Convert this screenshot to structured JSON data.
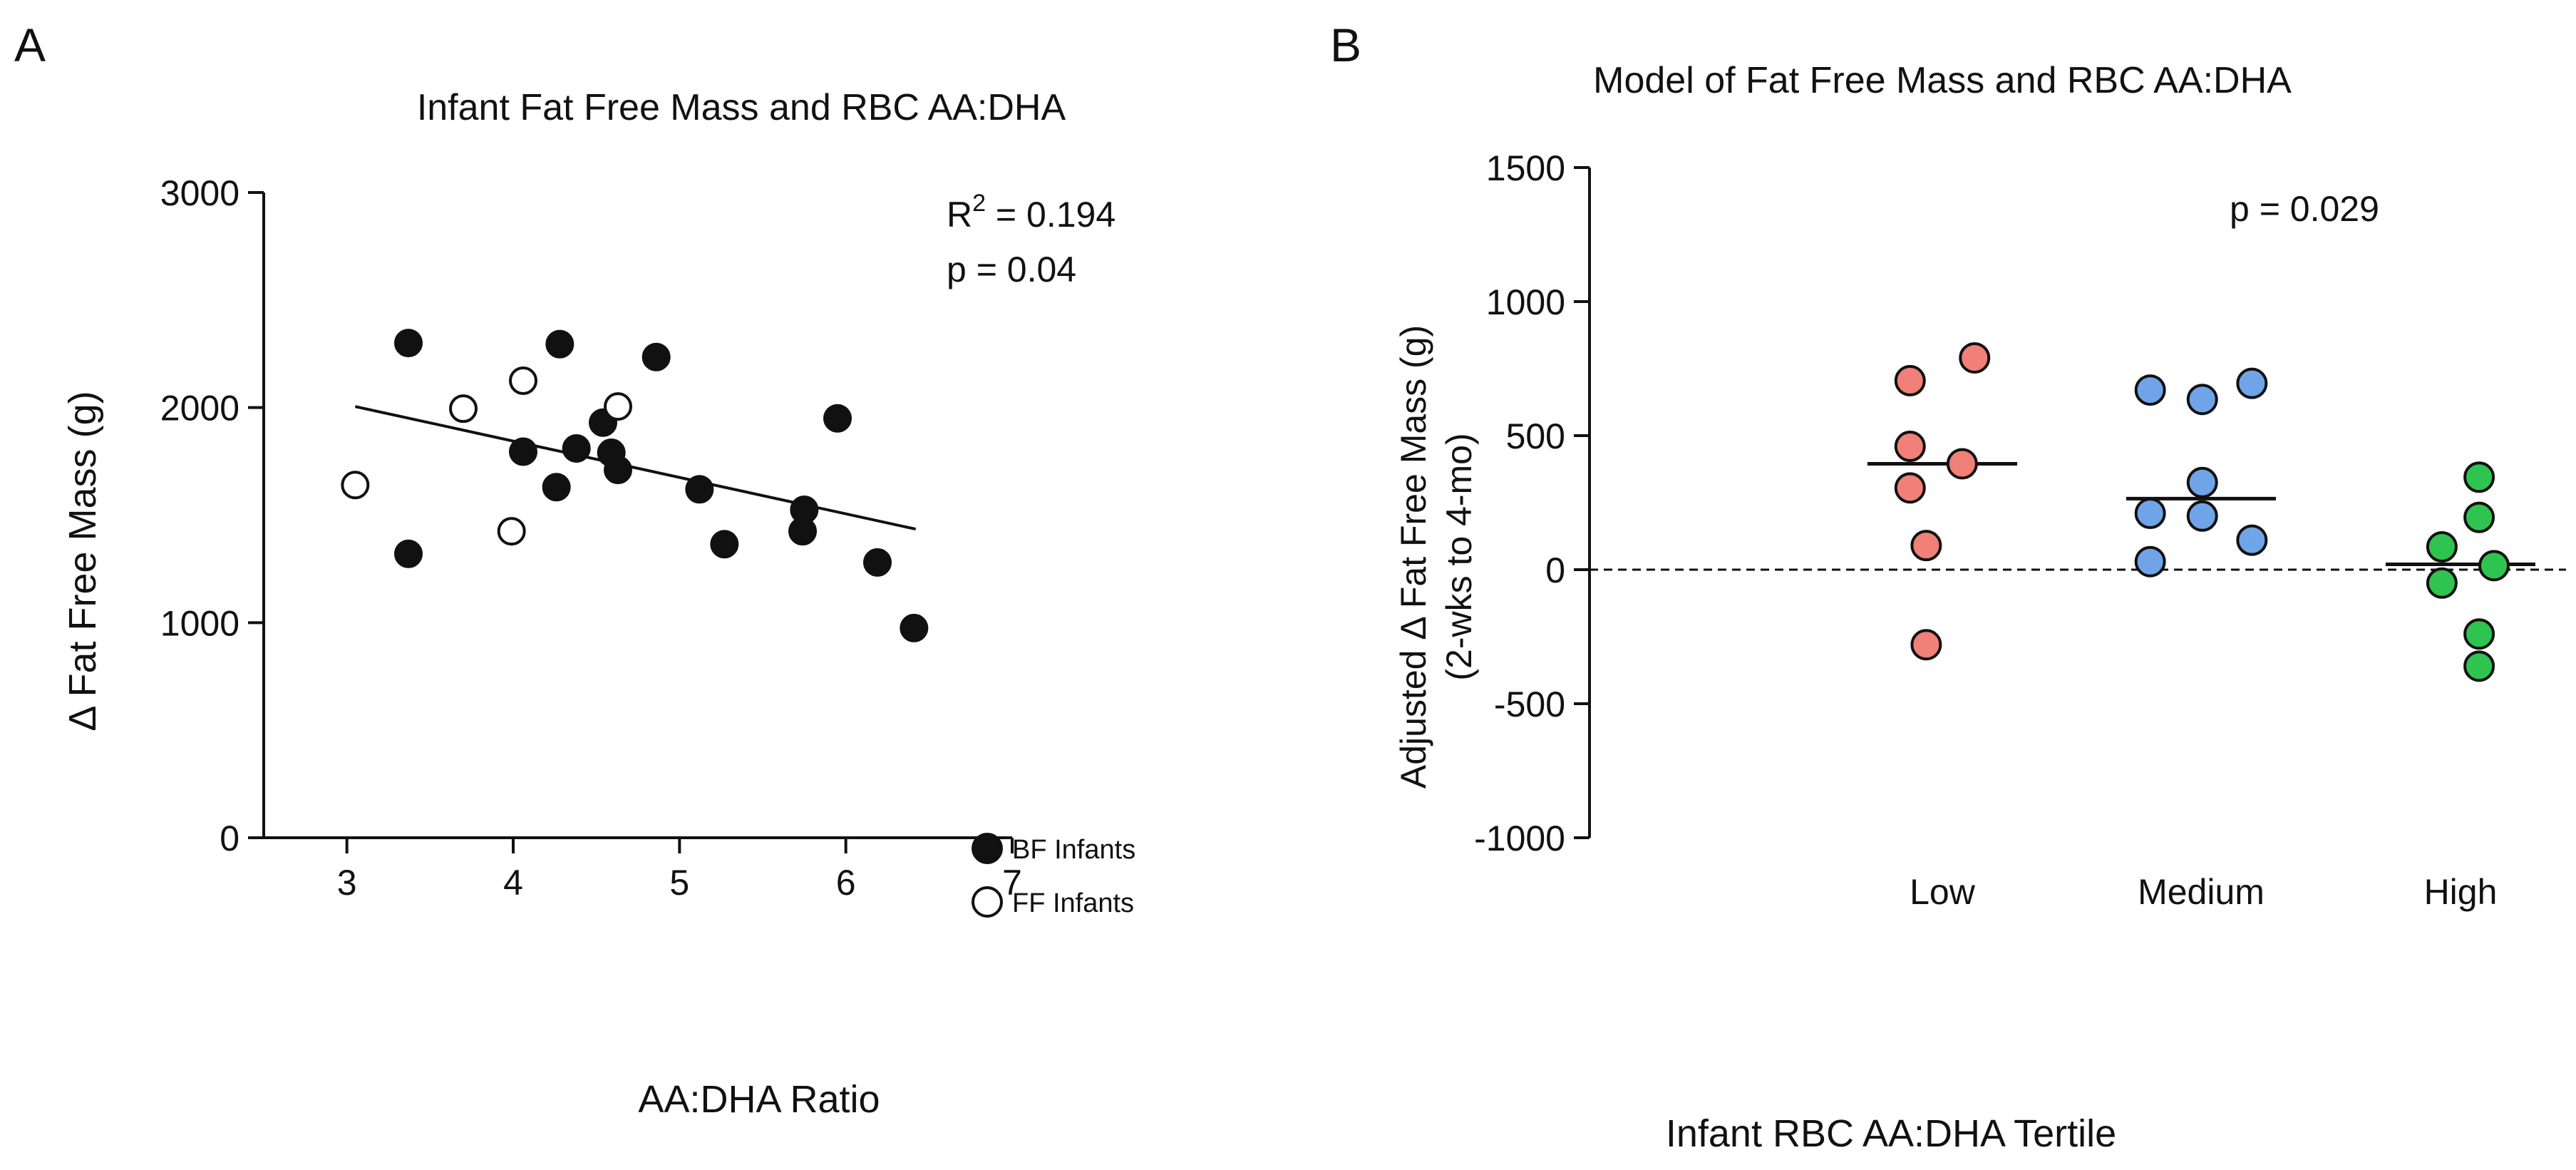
{
  "chart_data": [
    {
      "panel": "A",
      "type": "scatter",
      "title": "Infant Fat Free Mass and RBC AA:DHA",
      "xlabel": "AA:DHA Ratio",
      "ylabel": "Δ Fat Free Mass (g)",
      "xlim": [
        2.5,
        7
      ],
      "ylim": [
        0,
        3000
      ],
      "xticks": [
        3,
        4,
        5,
        6,
        7
      ],
      "yticks": [
        0,
        1000,
        2000,
        3000
      ],
      "annotations": {
        "r2_prefix": "R",
        "r2_sup": "2",
        "r2_value": " = 0.194",
        "p": "p = 0.04"
      },
      "legend_position": "bottom-right",
      "series": [
        {
          "name": "BF Infants",
          "fill": "#111111",
          "points": [
            {
              "x": 3.37,
              "y": 2300
            },
            {
              "x": 3.37,
              "y": 1320
            },
            {
              "x": 4.06,
              "y": 1795
            },
            {
              "x": 4.26,
              "y": 1630
            },
            {
              "x": 4.28,
              "y": 2295
            },
            {
              "x": 4.38,
              "y": 1810
            },
            {
              "x": 4.54,
              "y": 1930
            },
            {
              "x": 4.59,
              "y": 1790
            },
            {
              "x": 4.63,
              "y": 1710
            },
            {
              "x": 4.86,
              "y": 2235
            },
            {
              "x": 5.12,
              "y": 1620
            },
            {
              "x": 5.27,
              "y": 1365
            },
            {
              "x": 5.75,
              "y": 1525
            },
            {
              "x": 5.74,
              "y": 1425
            },
            {
              "x": 5.95,
              "y": 1950
            },
            {
              "x": 6.19,
              "y": 1280
            },
            {
              "x": 6.41,
              "y": 975
            }
          ]
        },
        {
          "name": "FF Infants",
          "fill": "#ffffff",
          "points": [
            {
              "x": 3.05,
              "y": 1640
            },
            {
              "x": 3.7,
              "y": 1995
            },
            {
              "x": 3.99,
              "y": 1425
            },
            {
              "x": 4.06,
              "y": 2125
            },
            {
              "x": 4.63,
              "y": 2005
            }
          ]
        }
      ],
      "regression_line": {
        "x": [
          3.05,
          6.42
        ],
        "y": [
          2005,
          1435
        ]
      }
    },
    {
      "panel": "B",
      "type": "scatter",
      "title": "Model of Fat Free Mass and RBC AA:DHA",
      "xlabel": "Infant  RBC AA:DHA Tertile",
      "ylabel": "Adjusted Δ Fat Free Mass (g)",
      "ylabel2": "(2-wks to 4-mo)",
      "ylim": [
        -1000,
        1500
      ],
      "yticks": [
        -1000,
        -500,
        0,
        500,
        1000,
        1500
      ],
      "annotations": {
        "p": "p = 0.029"
      },
      "reference_line_y": 0,
      "categories": [
        "Low",
        "Medium",
        "High"
      ],
      "groups": [
        {
          "name": "Low",
          "color": "#f08078",
          "median": 395,
          "points": [
            {
              "offset": -0.26,
              "y": 705
            },
            {
              "offset": 0.26,
              "y": 790
            },
            {
              "offset": -0.26,
              "y": 460
            },
            {
              "offset": 0.16,
              "y": 395
            },
            {
              "offset": -0.26,
              "y": 305
            },
            {
              "offset": -0.13,
              "y": 90
            },
            {
              "offset": -0.13,
              "y": -280
            }
          ]
        },
        {
          "name": "Medium",
          "color": "#6fa5e8",
          "median": 265,
          "points": [
            {
              "offset": -0.41,
              "y": 670
            },
            {
              "offset": 0.01,
              "y": 635
            },
            {
              "offset": 0.41,
              "y": 695
            },
            {
              "offset": -0.41,
              "y": 210
            },
            {
              "offset": 0.01,
              "y": 325
            },
            {
              "offset": 0.01,
              "y": 200
            },
            {
              "offset": 0.41,
              "y": 110
            },
            {
              "offset": -0.41,
              "y": 30
            }
          ]
        },
        {
          "name": "High",
          "color": "#2ec44f",
          "median": 20,
          "points": [
            {
              "offset": 0.15,
              "y": 345
            },
            {
              "offset": 0.15,
              "y": 195
            },
            {
              "offset": -0.15,
              "y": 85
            },
            {
              "offset": 0.27,
              "y": 15
            },
            {
              "offset": -0.15,
              "y": -50
            },
            {
              "offset": 0.15,
              "y": -240
            },
            {
              "offset": 0.15,
              "y": -360
            }
          ]
        }
      ]
    }
  ]
}
